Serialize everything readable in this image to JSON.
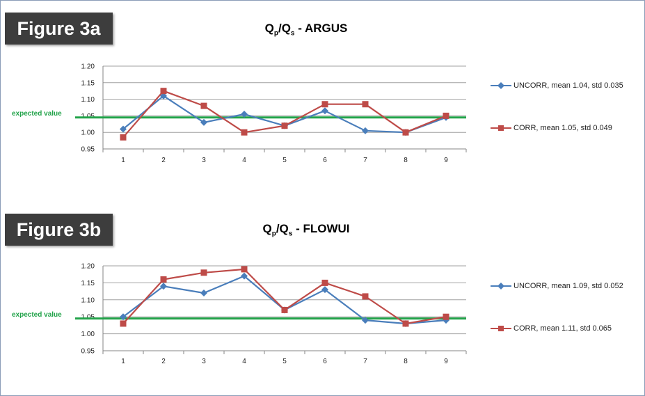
{
  "panels": [
    {
      "figure_label": "Figure 3a",
      "title": {
        "q1": "Q",
        "s1": "p",
        "mid": "/Q",
        "s2": "s",
        "rest": " - ARGUS"
      },
      "expected_label": "expected value"
    },
    {
      "figure_label": "Figure 3b",
      "title": {
        "q1": "Q",
        "s1": "p",
        "mid": "/Q",
        "s2": "s",
        "rest": " - FLOWUI"
      },
      "expected_label": "expected value"
    }
  ],
  "colors": {
    "uncorr": "#4a7ebb",
    "corr": "#be4b48",
    "expected": "#22a34a",
    "grid": "#a0a0a0"
  },
  "chart_data": [
    {
      "type": "line",
      "title": "Qp/Qs - ARGUS",
      "x": [
        "1",
        "2",
        "3",
        "4",
        "5",
        "6",
        "7",
        "8",
        "9"
      ],
      "ylim": [
        0.95,
        1.2
      ],
      "yticks": [
        "0.95",
        "1.00",
        "1.05",
        "1.10",
        "1.15",
        "1.20"
      ],
      "grid": true,
      "legend": "right",
      "expected_value": 1.045,
      "series": [
        {
          "name": "UNCORR, mean 1.04, std  0.035",
          "marker": "diamond",
          "values": [
            1.01,
            1.11,
            1.03,
            1.055,
            1.02,
            1.065,
            1.005,
            1.0,
            1.045
          ]
        },
        {
          "name": "CORR, mean 1.05, std 0.049",
          "marker": "square",
          "values": [
            0.985,
            1.125,
            1.08,
            1.0,
            1.02,
            1.085,
            1.085,
            1.0,
            1.05
          ]
        }
      ]
    },
    {
      "type": "line",
      "title": "Qp/Qs - FLOWUI",
      "x": [
        "1",
        "2",
        "3",
        "4",
        "5",
        "6",
        "7",
        "8",
        "9"
      ],
      "ylim": [
        0.95,
        1.2
      ],
      "yticks": [
        "0.95",
        "1.00",
        "1.05",
        "1.10",
        "1.15",
        "1.20"
      ],
      "grid": true,
      "legend": "right",
      "expected_value": 1.045,
      "series": [
        {
          "name": "UNCORR, mean 1.09, std 0.052",
          "marker": "diamond",
          "values": [
            1.05,
            1.14,
            1.12,
            1.17,
            1.07,
            1.13,
            1.04,
            1.03,
            1.04
          ]
        },
        {
          "name": "CORR, mean 1.11, std 0.065",
          "marker": "square",
          "values": [
            1.03,
            1.16,
            1.18,
            1.19,
            1.07,
            1.15,
            1.11,
            1.03,
            1.05
          ]
        }
      ]
    }
  ]
}
